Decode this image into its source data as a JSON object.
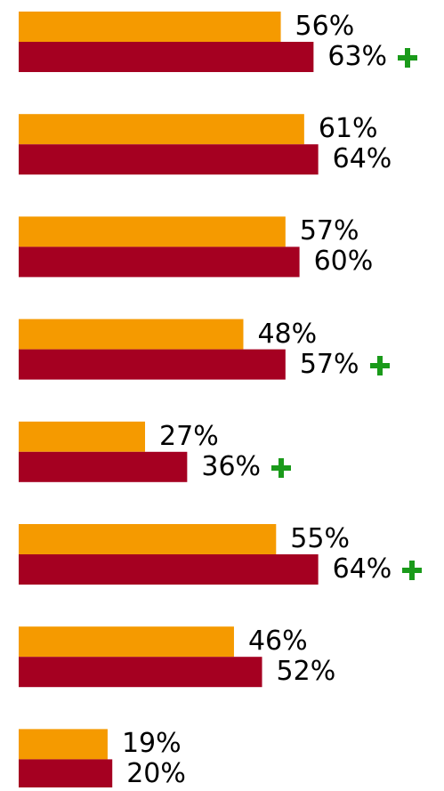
{
  "chart_data": {
    "type": "bar",
    "orientation": "horizontal",
    "xlim": [
      0,
      100
    ],
    "legend": "none",
    "grid": false,
    "colors": {
      "series_a": "#f59a00",
      "series_b": "#a50021",
      "plus_marker": "#1a9a1a"
    },
    "series": [
      {
        "values": [
          56,
          61,
          57,
          48,
          27,
          55,
          46,
          19
        ]
      },
      {
        "values": [
          63,
          64,
          60,
          57,
          36,
          64,
          52,
          20
        ]
      }
    ],
    "data_labels": {
      "series_a": [
        "56%",
        "61%",
        "57%",
        "48%",
        "27%",
        "55%",
        "46%",
        "19%"
      ],
      "series_b": [
        "63%",
        "64%",
        "60%",
        "57%",
        "36%",
        "64%",
        "52%",
        "20%"
      ]
    },
    "plus_markers": [
      true,
      false,
      false,
      true,
      true,
      true,
      false,
      false
    ],
    "plus_icon_name": "plus-icon"
  }
}
